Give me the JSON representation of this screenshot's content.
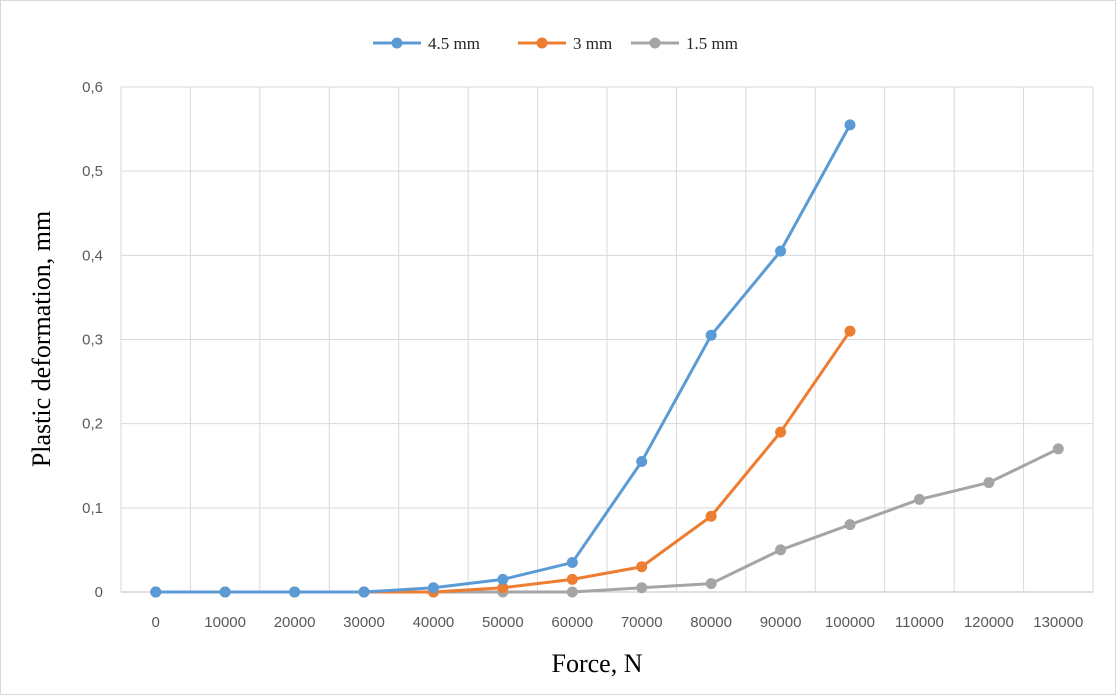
{
  "chart_data": {
    "type": "line",
    "title": "",
    "xlabel": "Force, N",
    "ylabel": "Plastic deformation, mm",
    "x": [
      0,
      10000,
      20000,
      30000,
      40000,
      50000,
      60000,
      70000,
      80000,
      90000,
      100000,
      110000,
      120000,
      130000
    ],
    "x_tick_labels": [
      "0",
      "10000",
      "20000",
      "30000",
      "40000",
      "50000",
      "60000",
      "70000",
      "80000",
      "90000",
      "100000",
      "110000",
      "120000",
      "130000"
    ],
    "y_tick_labels": [
      "0",
      "0,1",
      "0,2",
      "0,3",
      "0,4",
      "0,5",
      "0,6"
    ],
    "ylim": [
      0,
      0.6
    ],
    "grid": true,
    "legend_position": "top",
    "series": [
      {
        "name": "4.5 mm",
        "color": "#5b9bd5",
        "x": [
          0,
          10000,
          20000,
          30000,
          40000,
          50000,
          60000,
          70000,
          80000,
          90000,
          100000
        ],
        "values": [
          0,
          0,
          0,
          0,
          0.005,
          0.015,
          0.035,
          0.155,
          0.305,
          0.405,
          0.555
        ]
      },
      {
        "name": "3 mm",
        "color": "#ed7d31",
        "x": [
          0,
          10000,
          20000,
          30000,
          40000,
          50000,
          60000,
          70000,
          80000,
          90000,
          100000
        ],
        "values": [
          0,
          0,
          0,
          0,
          0,
          0.005,
          0.015,
          0.03,
          0.09,
          0.19,
          0.31
        ]
      },
      {
        "name": "1.5 mm",
        "color": "#a5a5a5",
        "x": [
          0,
          10000,
          20000,
          30000,
          40000,
          50000,
          60000,
          70000,
          80000,
          90000,
          100000,
          110000,
          120000,
          130000
        ],
        "values": [
          0,
          0,
          0,
          0,
          0,
          0,
          0,
          0.005,
          0.01,
          0.05,
          0.08,
          0.11,
          0.13,
          0.17
        ]
      }
    ]
  }
}
